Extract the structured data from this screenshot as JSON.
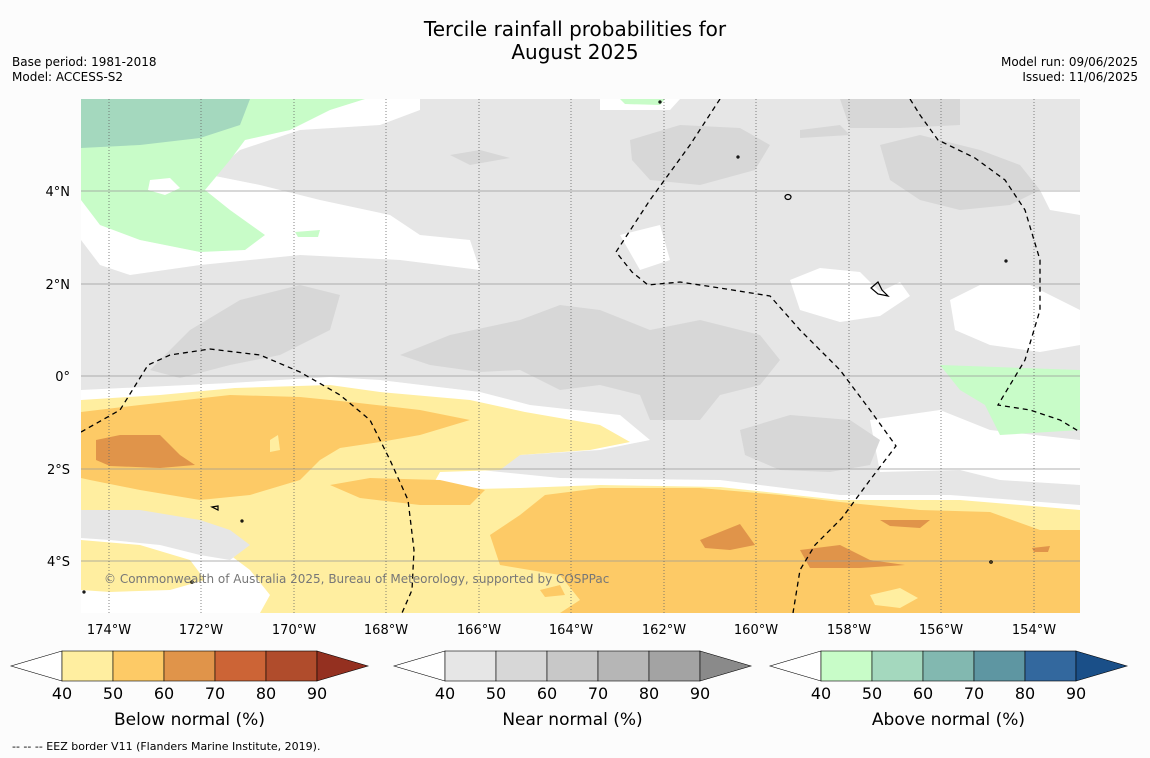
{
  "title_line1": "Tercile rainfall probabilities for",
  "title_line2": "August 2025",
  "meta_left": [
    "Base period: 1981-2018",
    "Model: ACCESS-S2"
  ],
  "meta_right": [
    "Model run: 09/06/2025",
    "Issued: 11/06/2025"
  ],
  "copyright": "© Commonwealth of Australia 2025, Bureau of Meteorology, supported by COSPPac",
  "footnote": "--  --  -- EEZ border V11 (Flanders Marine Institute, 2019).",
  "lat_labels": [
    "4°N",
    "2°N",
    "0°",
    "2°S",
    "4°S"
  ],
  "lon_labels": [
    "174°W",
    "172°W",
    "170°W",
    "168°W",
    "166°W",
    "164°W",
    "162°W",
    "160°W",
    "158°W",
    "156°W",
    "154°W"
  ],
  "colorbars": [
    {
      "title": "Below normal (%)",
      "ticks": [
        "40",
        "50",
        "60",
        "70",
        "80",
        "90"
      ],
      "colors": [
        "#ffeea0",
        "#fdca66",
        "#e0944a",
        "#cc6436",
        "#b04c2c",
        "#943020"
      ]
    },
    {
      "title": "Near normal (%)",
      "ticks": [
        "40",
        "50",
        "60",
        "70",
        "80",
        "90"
      ],
      "colors": [
        "#e6e6e6",
        "#d7d7d7",
        "#c8c8c8",
        "#b6b6b6",
        "#a3a3a3",
        "#8a8a8a"
      ]
    },
    {
      "title": "Above normal (%)",
      "ticks": [
        "40",
        "50",
        "60",
        "70",
        "80",
        "90"
      ],
      "colors": [
        "#c8fcc8",
        "#a4d8be",
        "#82b8b0",
        "#5e96a2",
        "#33689e",
        "#1a4f88"
      ]
    }
  ],
  "colors": {
    "no_signal": "#ffffff",
    "background": "#fcfcfc",
    "grid": "#999999",
    "eez": "#000000"
  }
}
